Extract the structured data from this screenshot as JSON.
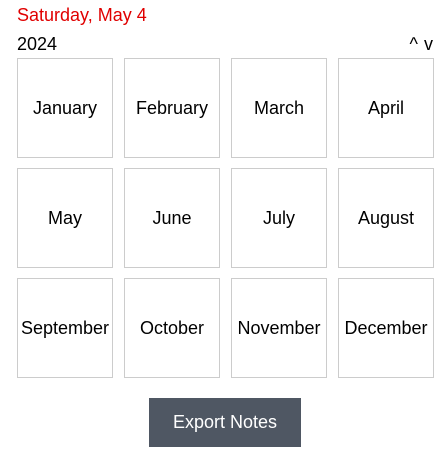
{
  "header": {
    "selected_date": "Saturday, May 4",
    "selected_date_color": "#e00000",
    "year": "2024",
    "nav_up_label": "^",
    "nav_down_label": "v"
  },
  "months": [
    "January",
    "February",
    "March",
    "April",
    "May",
    "June",
    "July",
    "August",
    "September",
    "October",
    "November",
    "December"
  ],
  "actions": {
    "export_label": "Export Notes",
    "export_color": "#4f5763"
  }
}
